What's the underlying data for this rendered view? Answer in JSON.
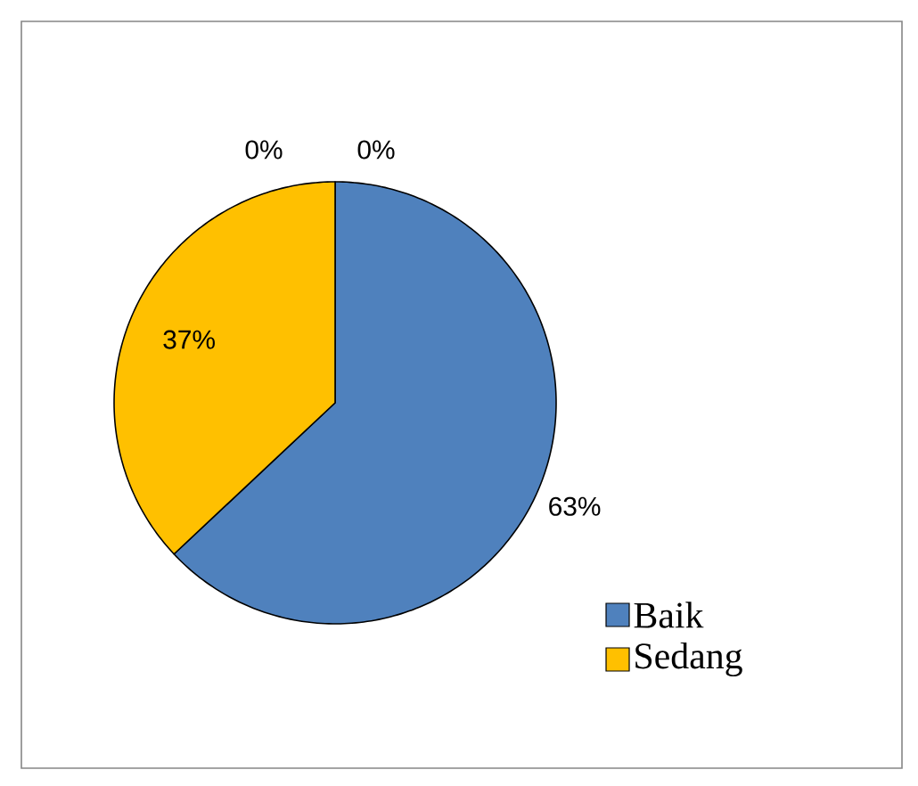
{
  "chart_data": {
    "type": "pie",
    "categories": [
      "Baik",
      "Sedang",
      null,
      null
    ],
    "values": [
      63,
      37,
      0,
      0
    ],
    "colors": [
      "#4f81bd",
      "#ffc000",
      "#9bbb59",
      "#8064a2"
    ],
    "value_labels": [
      "63%",
      "37%",
      "0%",
      "0%"
    ],
    "legend": "right"
  }
}
